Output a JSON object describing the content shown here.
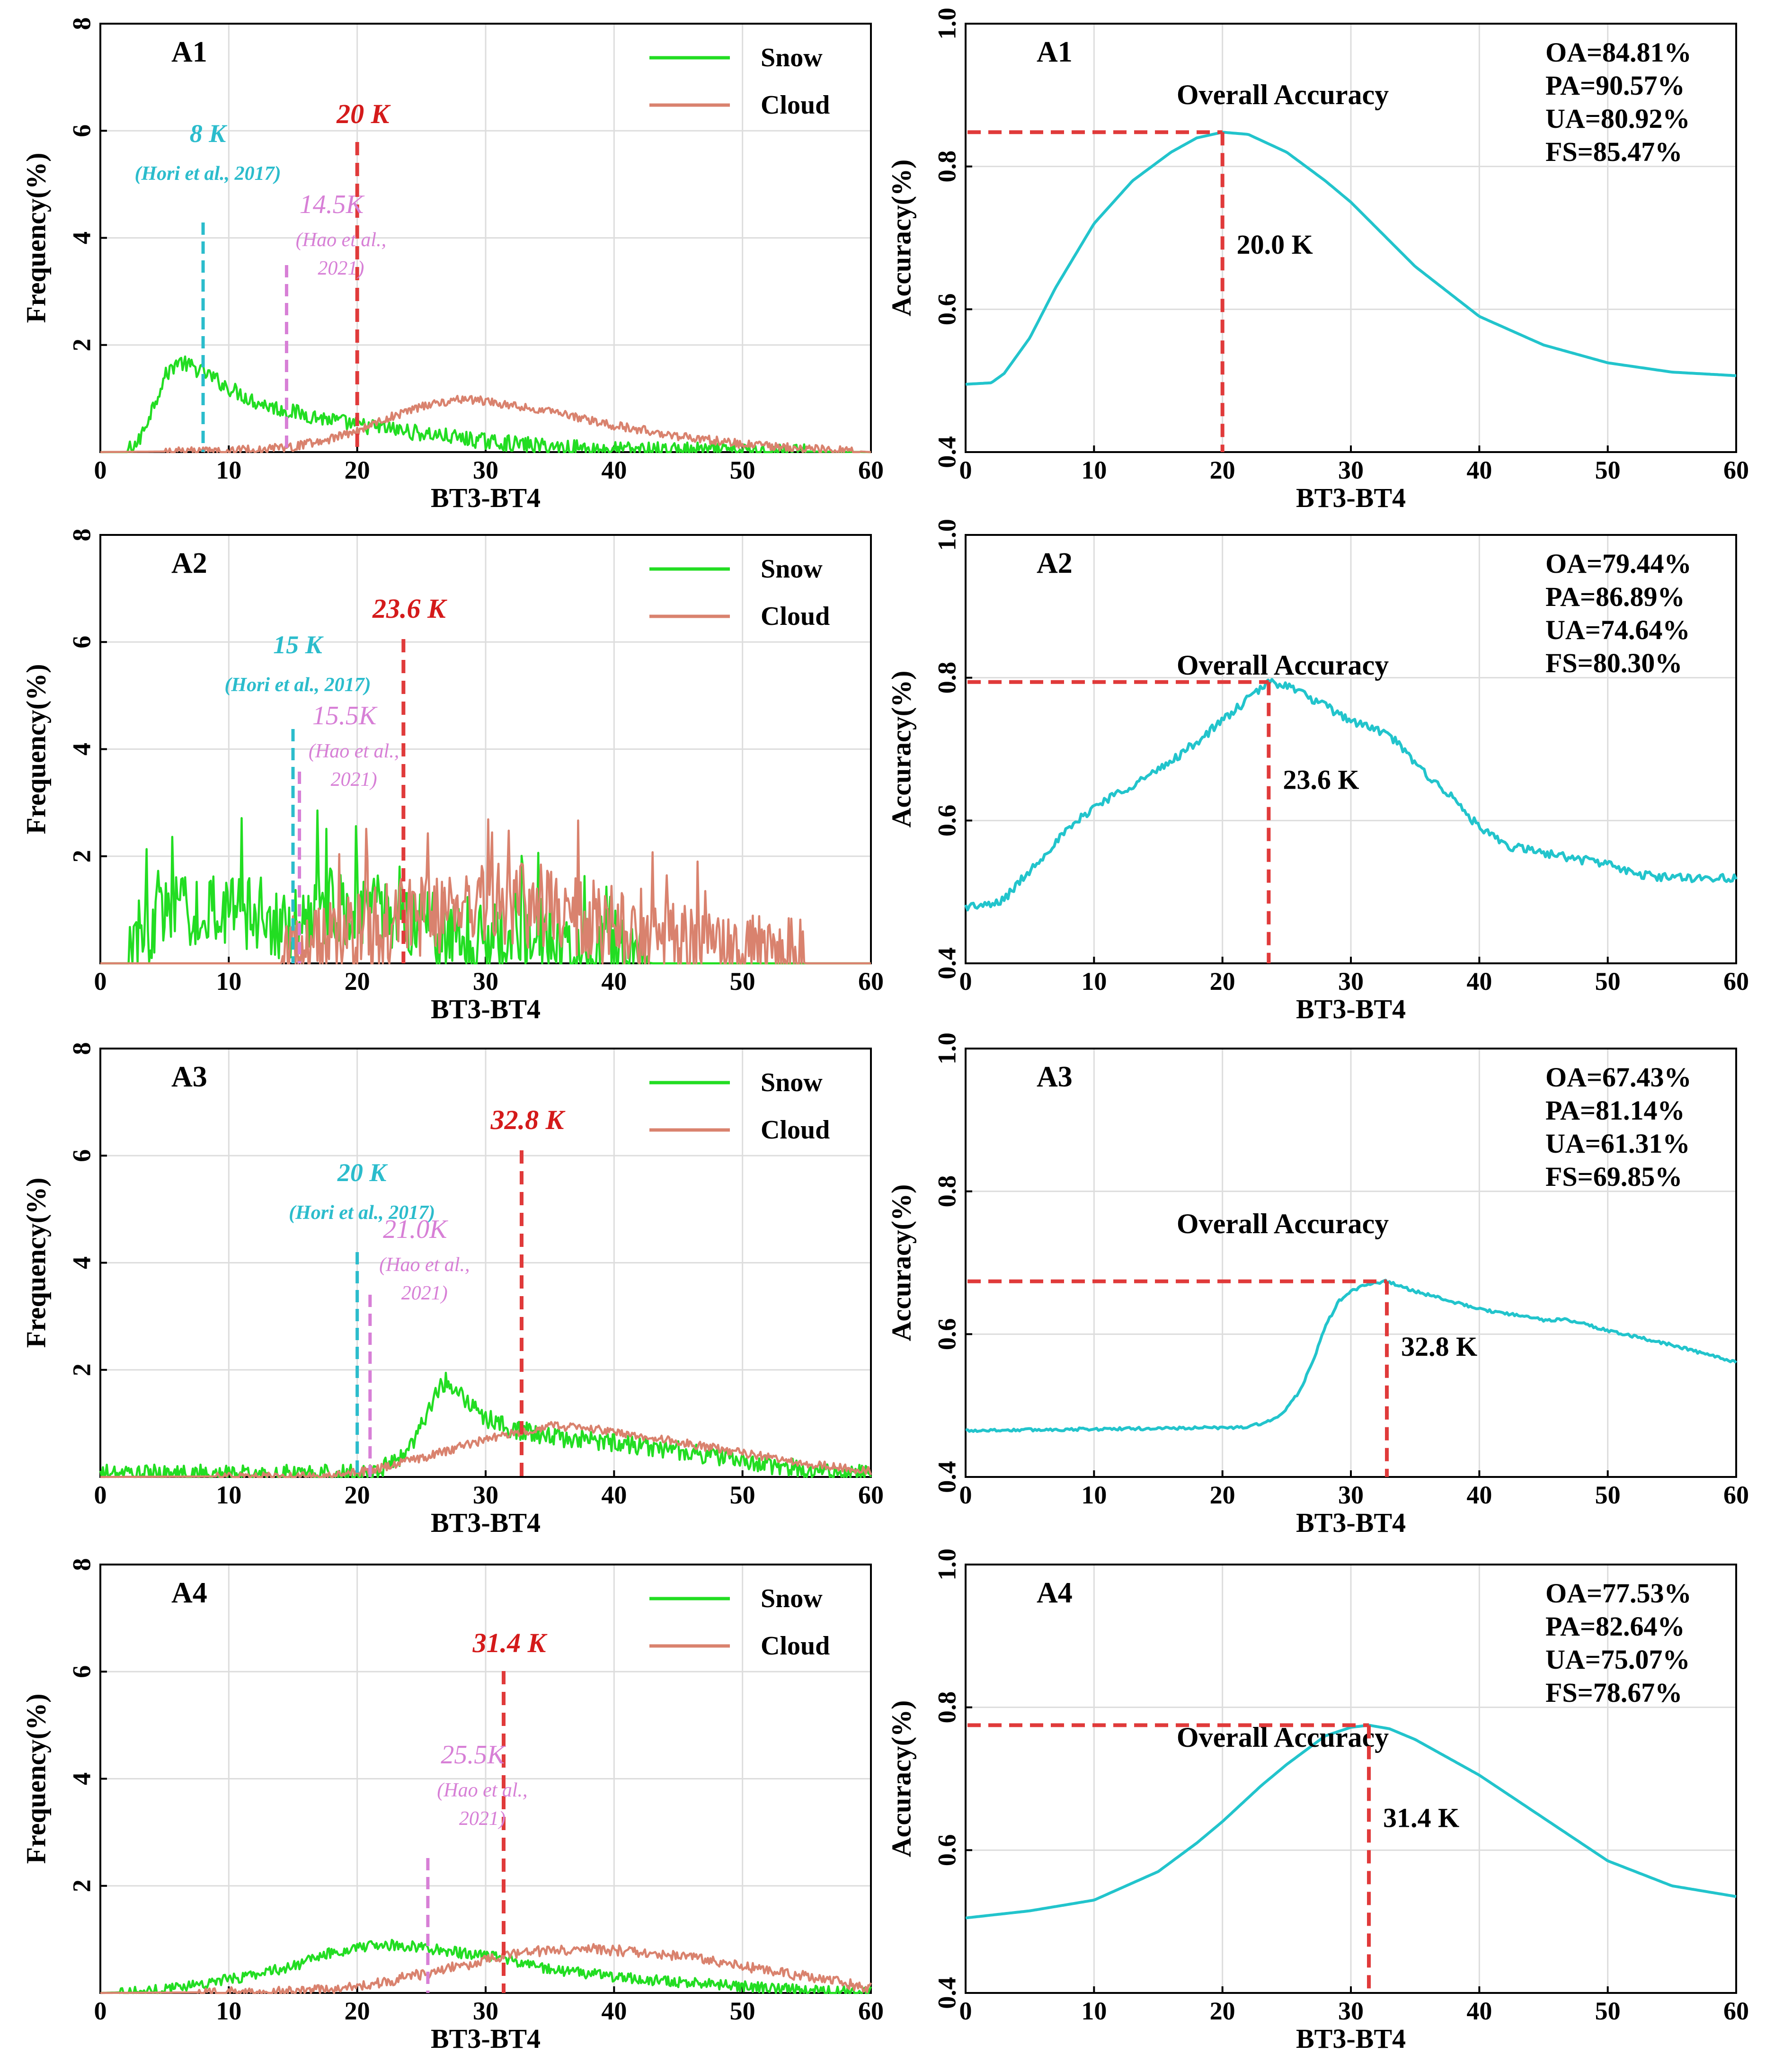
{
  "figure": {
    "colors": {
      "snow": "#22dd22",
      "cloud": "#d9826e",
      "accuracy": "#22c4cc",
      "threshold": "#e03a3a",
      "threshold_text": "#d41a1a",
      "hori": "#2bbccc",
      "hao": "#d77fd6",
      "grid": "#dddddd"
    }
  },
  "chart_data": [
    {
      "panel": "A1-frequency",
      "type": "line",
      "title": "A1",
      "xlabel": "BT3-BT4",
      "ylabel": "Frequency(%)",
      "xlim": [
        0,
        60
      ],
      "ylim": [
        0,
        8
      ],
      "xticks": [
        0,
        10,
        20,
        30,
        40,
        50,
        60
      ],
      "yticks": [
        2,
        4,
        6,
        8
      ],
      "legend": [
        "Snow",
        "Cloud"
      ],
      "series": [
        {
          "name": "Snow",
          "x": [
            0,
            2,
            3,
            4,
            5,
            6,
            7,
            8,
            10,
            12,
            14,
            16,
            18,
            20,
            22,
            25,
            30,
            35,
            40,
            50,
            60
          ],
          "values": [
            0,
            0,
            0.2,
            0.8,
            1.4,
            1.7,
            1.6,
            1.5,
            1.2,
            0.95,
            0.8,
            0.7,
            0.6,
            0.5,
            0.45,
            0.35,
            0.2,
            0.1,
            0.05,
            0.02,
            0
          ],
          "noise": 0.15
        },
        {
          "name": "Cloud",
          "x": [
            0,
            10,
            15,
            18,
            20,
            22,
            25,
            28,
            30,
            35,
            40,
            45,
            50,
            55,
            60
          ],
          "values": [
            0,
            0.02,
            0.1,
            0.25,
            0.4,
            0.6,
            0.85,
            1.0,
            0.95,
            0.75,
            0.5,
            0.3,
            0.15,
            0.06,
            0
          ],
          "noise": 0.08
        }
      ],
      "threshold": {
        "x": 20,
        "label": "20 K"
      },
      "hori": {
        "x": 8,
        "label": "8 K",
        "ref": "(Hori et al., 2017)"
      },
      "hao": {
        "x": 14.5,
        "label": "14.5K",
        "ref1": "(Hao et al.,",
        "ref2": "2021)"
      }
    },
    {
      "panel": "A1-accuracy",
      "type": "line",
      "title": "A1",
      "subtitle": "Overall Accuracy",
      "xlabel": "BT3-BT4",
      "ylabel": "Accuracy(%)",
      "xlim": [
        0,
        60
      ],
      "ylim": [
        0.4,
        1.0
      ],
      "xticks": [
        0,
        10,
        20,
        30,
        40,
        50,
        60
      ],
      "yticks": [
        0.4,
        0.6,
        0.8,
        1.0
      ],
      "metrics": [
        "OA=84.81%",
        "PA=90.57%",
        "UA=80.92%",
        "FS=85.47%"
      ],
      "series": [
        {
          "name": "Overall Accuracy",
          "x": [
            0,
            2,
            3,
            5,
            7,
            10,
            13,
            16,
            18,
            20,
            22,
            25,
            28,
            30,
            35,
            40,
            45,
            50,
            55,
            60
          ],
          "values": [
            0.495,
            0.497,
            0.51,
            0.56,
            0.63,
            0.72,
            0.78,
            0.82,
            0.84,
            0.848,
            0.845,
            0.82,
            0.78,
            0.75,
            0.66,
            0.59,
            0.55,
            0.525,
            0.512,
            0.507
          ],
          "noise": 0
        }
      ],
      "threshold": {
        "x": 20,
        "y": 0.848,
        "label": "20.0 K"
      }
    },
    {
      "panel": "A2-frequency",
      "type": "line",
      "title": "A2",
      "xlabel": "BT3-BT4",
      "ylabel": "Frequency(%)",
      "xlim": [
        0,
        60
      ],
      "ylim": [
        0,
        8
      ],
      "xticks": [
        0,
        10,
        20,
        30,
        40,
        50,
        60
      ],
      "yticks": [
        2,
        4,
        6,
        8
      ],
      "legend": [
        "Snow",
        "Cloud"
      ],
      "series": [
        {
          "name": "Snow",
          "x": [
            0,
            2,
            2.5,
            5,
            8,
            10,
            13,
            15,
            18,
            20,
            23,
            25,
            28,
            30,
            33,
            35,
            38,
            40,
            42,
            43,
            60
          ],
          "values": [
            0,
            0,
            0.5,
            0.9,
            1.0,
            0.9,
            0.8,
            0.7,
            1.1,
            1.0,
            0.9,
            0.7,
            0.6,
            0.5,
            0.4,
            0.3,
            0.2,
            0.15,
            0.05,
            0,
            0
          ],
          "noise": 0.7
        },
        {
          "name": "Cloud",
          "x": [
            0,
            14,
            16,
            18,
            20,
            23,
            25,
            28,
            30,
            33,
            35,
            38,
            40,
            43,
            45,
            48,
            50,
            52,
            54,
            55,
            60
          ],
          "values": [
            0,
            0,
            0.2,
            0.4,
            0.5,
            0.8,
            0.9,
            1.1,
            1.2,
            1.1,
            1.0,
            0.8,
            0.6,
            0.4,
            0.3,
            0.2,
            0.2,
            0.15,
            0.05,
            0,
            0
          ],
          "noise": 0.8
        }
      ],
      "threshold": {
        "x": 23.6,
        "label": "23.6 K"
      },
      "hori": {
        "x": 15,
        "label": "15 K",
        "ref": "(Hori et al., 2017)"
      },
      "hao": {
        "x": 15.5,
        "label": "15.5K",
        "ref1": "(Hao et al.,",
        "ref2": "2021)"
      }
    },
    {
      "panel": "A2-accuracy",
      "type": "line",
      "title": "A2",
      "subtitle": "Overall Accuracy",
      "xlabel": "BT3-BT4",
      "ylabel": "Accuracy(%)",
      "xlim": [
        0,
        60
      ],
      "ylim": [
        0.4,
        1.0
      ],
      "xticks": [
        0,
        10,
        20,
        30,
        40,
        50,
        60
      ],
      "yticks": [
        0.4,
        0.6,
        0.8,
        1.0
      ],
      "metrics": [
        "OA=79.44%",
        "PA=86.89%",
        "UA=74.64%",
        "FS=80.30%"
      ],
      "series": [
        {
          "name": "Overall Accuracy",
          "x": [
            0,
            2,
            3,
            5,
            7,
            10,
            13,
            15,
            18,
            20,
            22,
            23.6,
            25,
            27,
            30,
            33,
            35,
            38,
            40,
            42,
            45,
            48,
            50,
            52,
            55,
            60
          ],
          "values": [
            0.48,
            0.481,
            0.49,
            0.53,
            0.57,
            0.62,
            0.65,
            0.67,
            0.71,
            0.74,
            0.77,
            0.794,
            0.79,
            0.77,
            0.74,
            0.72,
            0.68,
            0.63,
            0.59,
            0.565,
            0.555,
            0.545,
            0.54,
            0.525,
            0.52,
            0.52
          ],
          "noise": 0.006
        }
      ],
      "threshold": {
        "x": 23.6,
        "y": 0.794,
        "label": "23.6 K"
      }
    },
    {
      "panel": "A3-frequency",
      "type": "line",
      "title": "A3",
      "xlabel": "BT3-BT4",
      "ylabel": "Frequency(%)",
      "xlim": [
        0,
        60
      ],
      "ylim": [
        0,
        8
      ],
      "xticks": [
        0,
        10,
        20,
        30,
        40,
        50,
        60
      ],
      "yticks": [
        2,
        4,
        6,
        8
      ],
      "legend": [
        "Snow",
        "Cloud"
      ],
      "series": [
        {
          "name": "Snow",
          "x": [
            0,
            20,
            22,
            24,
            25,
            26,
            27,
            28,
            29,
            30,
            32,
            35,
            40,
            45,
            50,
            55,
            60
          ],
          "values": [
            0.05,
            0.05,
            0.15,
            0.5,
            1.0,
            1.5,
            1.8,
            1.6,
            1.3,
            1.1,
            0.9,
            0.75,
            0.65,
            0.5,
            0.3,
            0.12,
            0.03
          ],
          "noise": 0.18
        },
        {
          "name": "Cloud",
          "x": [
            0,
            18,
            20,
            25,
            30,
            33,
            35,
            38,
            40,
            45,
            50,
            55,
            60
          ],
          "values": [
            0,
            0.02,
            0.08,
            0.35,
            0.7,
            0.85,
            0.95,
            0.9,
            0.85,
            0.65,
            0.45,
            0.25,
            0.1
          ],
          "noise": 0.08
        }
      ],
      "threshold": {
        "x": 32.8,
        "label": "32.8 K"
      },
      "hori": {
        "x": 20,
        "label": "20 K",
        "ref": "(Hori et al., 2017)"
      },
      "hao": {
        "x": 21.0,
        "label": "21.0K",
        "ref1": "(Hao et al.,",
        "ref2": "2021)"
      }
    },
    {
      "panel": "A3-accuracy",
      "type": "line",
      "title": "A3",
      "subtitle": "Overall Accuracy",
      "xlabel": "BT3-BT4",
      "ylabel": "Accuracy(%)",
      "xlim": [
        0,
        60
      ],
      "ylim": [
        0.4,
        1.0
      ],
      "xticks": [
        0,
        10,
        20,
        30,
        40,
        50,
        60
      ],
      "yticks": [
        0.4,
        0.6,
        0.8,
        1.0
      ],
      "metrics": [
        "OA=67.43%",
        "PA=81.14%",
        "UA=61.31%",
        "FS=69.85%"
      ],
      "series": [
        {
          "name": "Overall Accuracy",
          "x": [
            0,
            10,
            20,
            22,
            24,
            25,
            26,
            27,
            28,
            29,
            30,
            31,
            32.8,
            35,
            40,
            45,
            47,
            50,
            55,
            60
          ],
          "values": [
            0.465,
            0.467,
            0.469,
            0.47,
            0.48,
            0.495,
            0.52,
            0.56,
            0.61,
            0.645,
            0.66,
            0.668,
            0.674,
            0.66,
            0.635,
            0.62,
            0.62,
            0.605,
            0.585,
            0.56
          ],
          "noise": 0.002
        }
      ],
      "threshold": {
        "x": 32.8,
        "y": 0.674,
        "label": "32.8 K"
      }
    },
    {
      "panel": "A4-frequency",
      "type": "line",
      "title": "A4",
      "xlabel": "BT3-BT4",
      "ylabel": "Frequency(%)",
      "xlim": [
        0,
        60
      ],
      "ylim": [
        0,
        8
      ],
      "xticks": [
        0,
        10,
        20,
        30,
        40,
        50,
        60
      ],
      "yticks": [
        2,
        4,
        6,
        8
      ],
      "legend": [
        "Snow",
        "Cloud"
      ],
      "series": [
        {
          "name": "Snow",
          "x": [
            0,
            3,
            5,
            10,
            15,
            18,
            20,
            23,
            25,
            28,
            30,
            33,
            35,
            40,
            45,
            50,
            55,
            60
          ],
          "values": [
            0,
            0.02,
            0.08,
            0.25,
            0.5,
            0.75,
            0.85,
            0.9,
            0.85,
            0.75,
            0.7,
            0.55,
            0.45,
            0.3,
            0.2,
            0.12,
            0.05,
            0.02
          ],
          "noise": 0.1
        },
        {
          "name": "Cloud",
          "x": [
            0,
            15,
            20,
            25,
            30,
            33,
            35,
            38,
            40,
            45,
            50,
            55,
            60
          ],
          "values": [
            0,
            0.02,
            0.1,
            0.35,
            0.6,
            0.75,
            0.8,
            0.82,
            0.8,
            0.7,
            0.5,
            0.3,
            0.1
          ],
          "noise": 0.1
        }
      ],
      "threshold": {
        "x": 31.4,
        "label": "31.4 K"
      },
      "hao": {
        "x": 25.5,
        "label": "25.5K",
        "ref1": "(Hao et al.,",
        "ref2": "2021)"
      }
    },
    {
      "panel": "A4-accuracy",
      "type": "line",
      "title": "A4",
      "subtitle": "Overall Accuracy",
      "xlabel": "BT3-BT4",
      "ylabel": "Accuracy(%)",
      "xlim": [
        0,
        60
      ],
      "ylim": [
        0.4,
        1.0
      ],
      "xticks": [
        0,
        10,
        20,
        30,
        40,
        50,
        60
      ],
      "yticks": [
        0.4,
        0.6,
        0.8,
        1.0
      ],
      "metrics": [
        "OA=77.53%",
        "PA=82.64%",
        "UA=75.07%",
        "FS=78.67%"
      ],
      "series": [
        {
          "name": "Overall Accuracy",
          "x": [
            0,
            5,
            10,
            15,
            18,
            20,
            23,
            25,
            28,
            30,
            31.4,
            33,
            35,
            40,
            45,
            50,
            55,
            60
          ],
          "values": [
            0.505,
            0.515,
            0.53,
            0.57,
            0.61,
            0.64,
            0.69,
            0.72,
            0.76,
            0.772,
            0.775,
            0.77,
            0.755,
            0.705,
            0.645,
            0.585,
            0.55,
            0.535
          ],
          "noise": 0
        }
      ],
      "threshold": {
        "x": 31.4,
        "y": 0.775,
        "label": "31.4 K"
      }
    }
  ]
}
